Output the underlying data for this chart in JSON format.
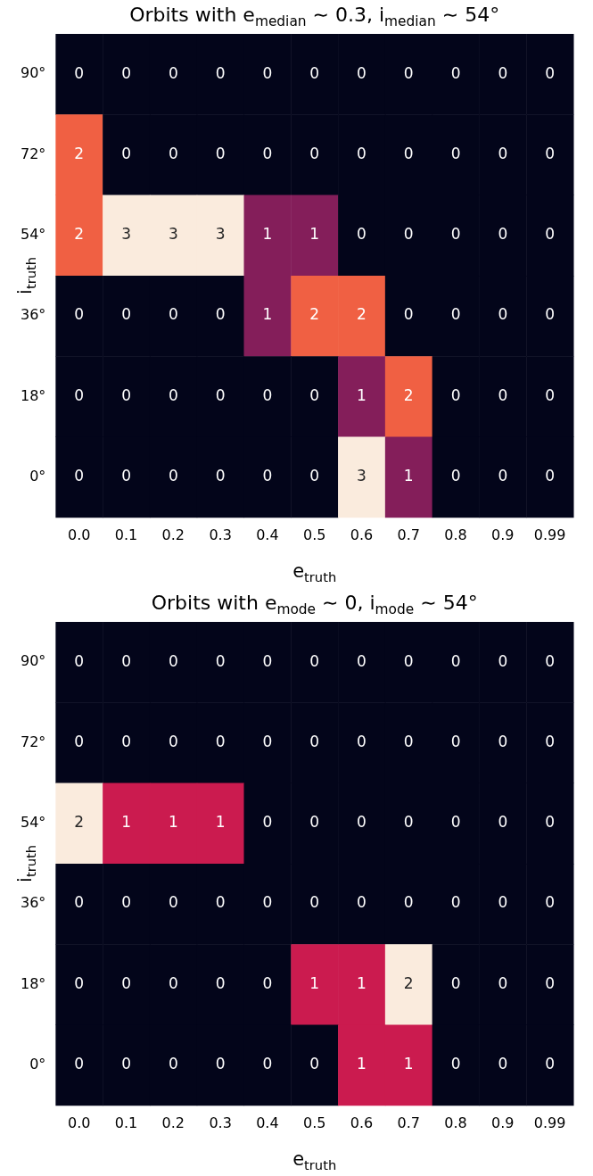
{
  "chart_data": [
    {
      "type": "heatmap",
      "title": "Orbits with e$_{median}$ ∼ 0.3, i$_{median}$ ∼ 54°",
      "xlabel": "e$_{truth}$",
      "ylabel": "i$_{truth}$",
      "data_labels": true,
      "categories": [
        "0.0",
        "0.1",
        "0.2",
        "0.3",
        "0.4",
        "0.5",
        "0.6",
        "0.7",
        "0.8",
        "0.9",
        "0.99"
      ],
      "y_categories": [
        "90°",
        "72°",
        "54°",
        "36°",
        "18°",
        "0°"
      ],
      "cells": [
        [
          0,
          0,
          0,
          0,
          0,
          0,
          0,
          0,
          0,
          0,
          0
        ],
        [
          2,
          0,
          0,
          0,
          0,
          0,
          0,
          0,
          0,
          0,
          0
        ],
        [
          2,
          3,
          3,
          3,
          1,
          1,
          0,
          0,
          0,
          0,
          0
        ],
        [
          0,
          0,
          0,
          0,
          1,
          2,
          2,
          0,
          0,
          0,
          0
        ],
        [
          0,
          0,
          0,
          0,
          0,
          0,
          1,
          2,
          0,
          0,
          0
        ],
        [
          0,
          0,
          0,
          0,
          0,
          0,
          3,
          1,
          0,
          0,
          0
        ]
      ]
    },
    {
      "type": "heatmap",
      "title": "Orbits with e$_{mode}$ ∼ 0, i$_{mode}$ ∼ 54°",
      "xlabel": "e$_{truth}$",
      "ylabel": "i$_{truth}$",
      "data_labels": true,
      "categories": [
        "0.0",
        "0.1",
        "0.2",
        "0.3",
        "0.4",
        "0.5",
        "0.6",
        "0.7",
        "0.8",
        "0.9",
        "0.99"
      ],
      "y_categories": [
        "90°",
        "72°",
        "54°",
        "36°",
        "18°",
        "0°"
      ],
      "cells": [
        [
          0,
          0,
          0,
          0,
          0,
          0,
          0,
          0,
          0,
          0,
          0
        ],
        [
          0,
          0,
          0,
          0,
          0,
          0,
          0,
          0,
          0,
          0,
          0
        ],
        [
          2,
          1,
          1,
          1,
          0,
          0,
          0,
          0,
          0,
          0,
          0
        ],
        [
          0,
          0,
          0,
          0,
          0,
          0,
          0,
          0,
          0,
          0,
          0
        ],
        [
          0,
          0,
          0,
          0,
          0,
          1,
          1,
          2,
          0,
          0,
          0
        ],
        [
          0,
          0,
          0,
          0,
          0,
          0,
          1,
          1,
          0,
          0,
          0
        ]
      ]
    }
  ]
}
